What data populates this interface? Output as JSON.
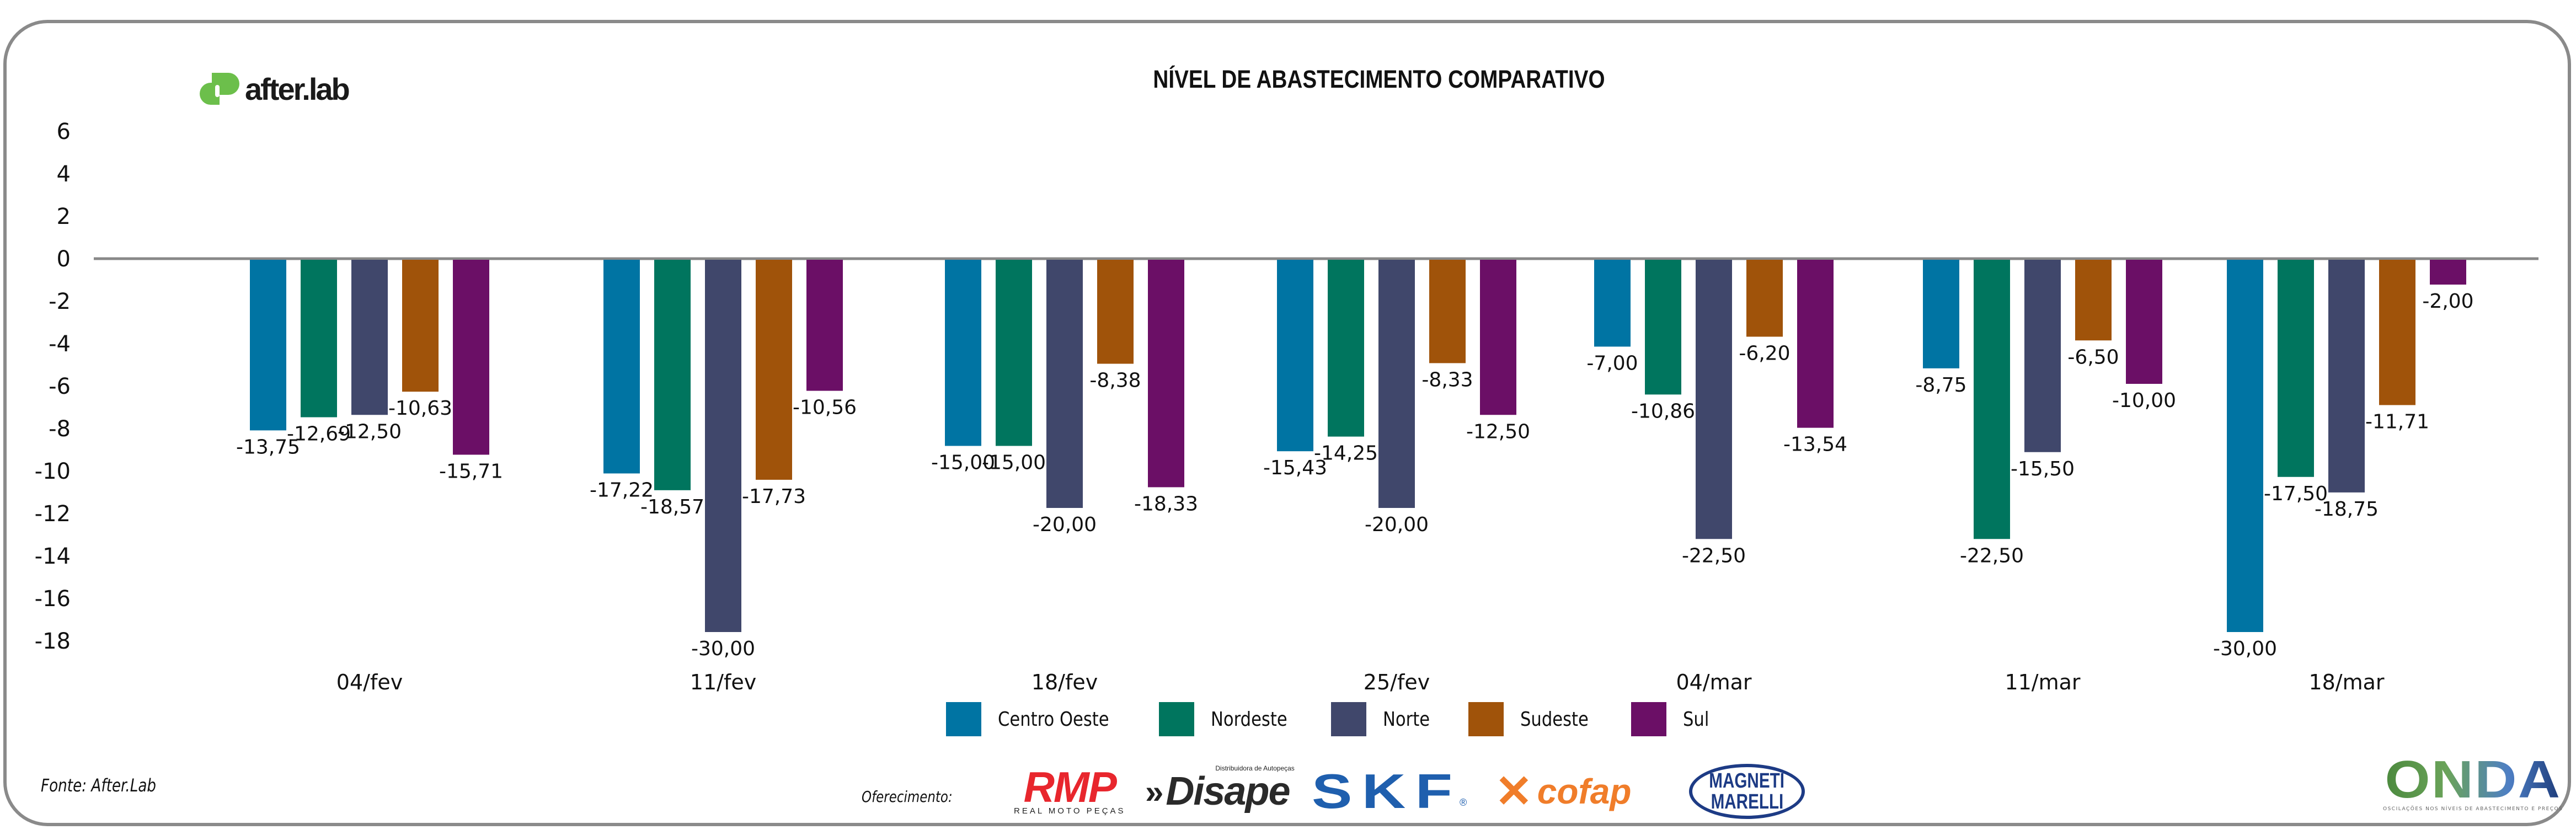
{
  "header": {
    "logo_text": "after.lab",
    "title": "NÍVEL DE ABASTECIMENTO COMPARATIVO"
  },
  "footer": {
    "source": "Fonte: After.Lab",
    "sponsored_by": "Oferecimento:",
    "sponsors": {
      "rmp": {
        "name": "RMP",
        "tagline": "REAL MOTO PEÇAS"
      },
      "disape": {
        "name": "Disape",
        "tagline": "Distribuidora de Autopeças"
      },
      "skf": {
        "name": "SKF"
      },
      "cofap": {
        "name": "cofap"
      },
      "magneti": {
        "line1": "MAGNETI",
        "line2": "MARELLI"
      },
      "onda": {
        "name": "ONDA",
        "tagline": "OSCILAÇÕES NOS NÍVEIS DE ABASTECIMENTO E PREÇOS"
      }
    }
  },
  "colors": {
    "centro_oeste": "#0074a3",
    "nordeste": "#00755e",
    "norte": "#40476b",
    "sudeste": "#a0530a",
    "sul": "#6b0f66",
    "axis": "#888888",
    "logo_green": "#6cbf4b"
  },
  "chart_data": {
    "type": "bar",
    "title": "NÍVEL DE ABASTECIMENTO COMPARATIVO",
    "xlabel": "",
    "ylabel": "",
    "ylim": [
      -18,
      6
    ],
    "yticks": [
      6,
      4,
      2,
      0,
      -2,
      -4,
      -6,
      -8,
      -10,
      -12,
      -14,
      -16,
      -18
    ],
    "grid": false,
    "legend_position": "bottom-center",
    "decimal_separator": ",",
    "categories": [
      "04/fev",
      "11/fev",
      "18/fev",
      "25/fev",
      "04/mar",
      "11/mar",
      "18/mar"
    ],
    "series": [
      {
        "name": "Centro Oeste",
        "color": "#0074a3",
        "values": [
          -13.75,
          -17.22,
          -15.0,
          -15.43,
          -7.0,
          -8.75,
          -30.0
        ]
      },
      {
        "name": "Nordeste",
        "color": "#00755e",
        "values": [
          -12.69,
          -18.57,
          -15.0,
          -14.25,
          -10.86,
          -22.5,
          -17.5
        ]
      },
      {
        "name": "Norte",
        "color": "#40476b",
        "values": [
          -12.5,
          -30.0,
          -20.0,
          -20.0,
          -22.5,
          -15.5,
          -18.75
        ]
      },
      {
        "name": "Sudeste",
        "color": "#a0530a",
        "values": [
          -10.63,
          -17.73,
          -8.38,
          -8.33,
          -6.2,
          -6.5,
          -11.71
        ]
      },
      {
        "name": "Sul",
        "color": "#6b0f66",
        "values": [
          -15.71,
          -10.56,
          -18.33,
          -12.5,
          -13.54,
          -10.0,
          -2.0
        ]
      }
    ]
  }
}
